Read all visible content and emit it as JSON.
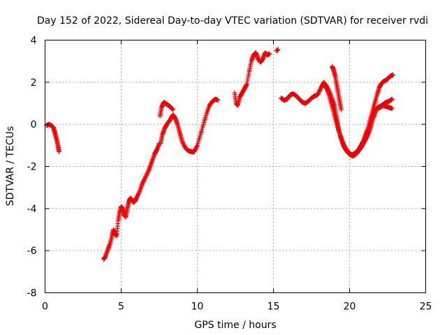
{
  "chart_data": {
    "type": "scatter",
    "title": "Day 152 of 2022, Sidereal Day-to-day VTEC variation (SDTVAR) for receiver rvdi",
    "xlabel": "GPS time / hours",
    "ylabel": "SDTVAR / TECUs",
    "xlim": [
      0,
      25
    ],
    "ylim": [
      -8,
      4
    ],
    "xticks": [
      "0",
      "5",
      "10",
      "15",
      "20",
      "25"
    ],
    "yticks": [
      "-8",
      "-6",
      "-4",
      "-2",
      "0",
      "2",
      "4"
    ],
    "grid": true,
    "marker": "+",
    "color": "#ee0000",
    "segments": [
      {
        "x": [
          0.1,
          0.25,
          0.4,
          0.55,
          0.65,
          0.75,
          0.85,
          0.92
        ],
        "y": [
          -0.05,
          0.0,
          -0.05,
          -0.15,
          -0.4,
          -0.7,
          -1.0,
          -1.3
        ]
      },
      {
        "x": [
          3.85,
          3.95,
          4.1,
          4.25,
          4.4,
          4.5,
          4.6,
          4.7,
          4.8,
          4.9,
          5.0,
          5.1,
          5.2,
          5.3,
          5.4,
          5.5,
          5.6,
          5.7,
          5.8,
          5.9,
          6.0,
          6.2,
          6.4,
          6.6,
          6.8,
          7.0,
          7.2,
          7.35,
          7.5
        ],
        "y": [
          -6.4,
          -6.3,
          -6.0,
          -5.7,
          -5.3,
          -5.0,
          -5.2,
          -5.3,
          -4.6,
          -4.2,
          -3.9,
          -4.0,
          -4.3,
          -4.4,
          -4.0,
          -3.7,
          -3.5,
          -3.6,
          -3.7,
          -3.65,
          -3.5,
          -3.2,
          -2.8,
          -2.5,
          -2.2,
          -1.8,
          -1.4,
          -1.2,
          -0.9
        ]
      },
      {
        "x": [
          7.55,
          7.65,
          7.8,
          8.0,
          8.2,
          8.4
        ],
        "y": [
          0.4,
          0.8,
          1.05,
          0.95,
          0.85,
          0.7
        ]
      },
      {
        "x": [
          7.6,
          7.7,
          7.85,
          8.0,
          8.2,
          8.4,
          8.55,
          8.7,
          8.85,
          9.0,
          9.2,
          9.4,
          9.6,
          9.8,
          10.0,
          10.2,
          10.4,
          10.6,
          10.8,
          11.0,
          11.2,
          11.35
        ],
        "y": [
          -0.9,
          -0.5,
          -0.2,
          0.0,
          0.2,
          0.45,
          0.3,
          0.0,
          -0.4,
          -0.8,
          -1.1,
          -1.25,
          -1.3,
          -1.3,
          -1.0,
          -0.5,
          0.0,
          0.5,
          0.9,
          1.1,
          1.2,
          1.15
        ]
      },
      {
        "x": [
          12.45,
          12.55,
          12.65,
          12.8,
          12.95,
          13.1,
          13.25,
          13.4,
          13.55,
          13.7,
          13.85,
          14.0,
          14.15,
          14.3,
          14.45,
          14.6,
          14.75
        ],
        "y": [
          1.5,
          1.0,
          0.9,
          1.3,
          1.5,
          1.7,
          1.9,
          2.5,
          3.0,
          3.3,
          3.4,
          3.1,
          2.95,
          3.1,
          3.4,
          3.3,
          3.35
        ]
      },
      {
        "x": [
          15.2,
          15.3
        ],
        "y": [
          3.5,
          3.55
        ]
      },
      {
        "x": [
          15.5,
          15.7,
          15.9,
          16.1,
          16.3,
          16.5,
          16.7,
          16.9,
          17.1,
          17.3,
          17.5,
          17.7,
          17.9,
          18.1,
          18.3,
          18.5,
          18.7,
          18.85,
          19.0,
          19.1,
          19.2,
          19.3,
          19.45,
          19.6,
          19.75,
          19.9,
          20.05,
          20.2,
          20.35,
          20.5,
          20.65,
          20.8,
          20.95,
          21.1,
          21.25,
          21.4,
          21.55,
          21.7,
          21.85,
          22.0,
          22.2,
          22.4,
          22.6,
          22.8
        ],
        "y": [
          1.25,
          1.15,
          1.2,
          1.4,
          1.45,
          1.35,
          1.2,
          1.05,
          1.0,
          1.1,
          1.25,
          1.35,
          1.4,
          1.7,
          2.0,
          1.8,
          1.5,
          1.2,
          0.9,
          0.5,
          0.1,
          -0.3,
          -0.7,
          -1.0,
          -1.2,
          -1.35,
          -1.45,
          -1.5,
          -1.45,
          -1.35,
          -1.2,
          -1.05,
          -0.85,
          -0.65,
          -0.4,
          -0.1,
          0.3,
          0.6,
          0.8,
          0.85,
          0.95,
          1.05,
          1.1,
          1.2
        ]
      },
      {
        "x": [
          18.35,
          18.5,
          18.65,
          18.8,
          18.95,
          19.1,
          19.25,
          19.4,
          19.55,
          19.7,
          19.85,
          20.0,
          20.15,
          20.3,
          20.45,
          20.6,
          20.75,
          20.9,
          21.05,
          21.2,
          21.35,
          21.5,
          21.65,
          21.8,
          21.95,
          22.1,
          22.25,
          22.4,
          22.55,
          22.7,
          22.85
        ],
        "y": [
          1.9,
          1.7,
          1.4,
          1.0,
          0.6,
          0.2,
          -0.2,
          -0.55,
          -0.85,
          -1.1,
          -1.25,
          -1.4,
          -1.45,
          -1.4,
          -1.3,
          -1.2,
          -1.0,
          -0.8,
          -0.5,
          -0.2,
          0.2,
          0.6,
          1.0,
          1.4,
          1.75,
          1.95,
          2.05,
          2.1,
          2.2,
          2.3,
          2.35
        ]
      },
      {
        "x": [
          18.85,
          18.95,
          19.05,
          19.15,
          19.25,
          19.35,
          19.45
        ],
        "y": [
          2.75,
          2.6,
          2.3,
          1.9,
          1.5,
          1.1,
          0.7
        ]
      },
      {
        "x": [
          21.6,
          21.8,
          22.0,
          22.2,
          22.4,
          22.6,
          22.8
        ],
        "y": [
          0.6,
          0.75,
          0.8,
          0.9,
          0.85,
          0.8,
          0.75
        ]
      }
    ]
  }
}
